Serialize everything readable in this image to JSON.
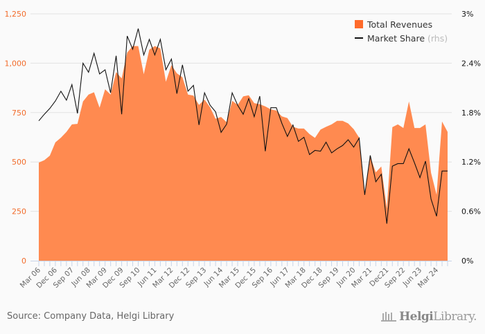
{
  "chart_data": {
    "type": "area+line",
    "title": "",
    "xlabel": "",
    "ylabel": "",
    "ylim": [
      0,
      1250
    ],
    "y_ticks": [
      "0",
      "250",
      "500",
      "750",
      "1,000",
      "1,250"
    ],
    "y2lim": [
      0,
      3
    ],
    "y2_ticks": [
      "0%",
      "0.6%",
      "1.2%",
      "1.8%",
      "2.4%",
      "3%"
    ],
    "x_tick_labels": [
      "Mar 06",
      "Dec 06",
      "Sep 07",
      "Jun 08",
      "Mar 09",
      "Dec 09",
      "Sep 10",
      "Jun 11",
      "Mar 12",
      "Dec 12",
      "Sep 13",
      "Jun 14",
      "Mar 15",
      "Dec 15",
      "Sep 16",
      "Jun 17",
      "Mar 18",
      "Dec 18",
      "Sep 19",
      "Jun 20",
      "Mar 21",
      "Dec21",
      "Sep 22",
      "Jun 23",
      "Mar 24"
    ],
    "x": [
      "Mar 06",
      "Jun 06",
      "Sep 06",
      "Dec 06",
      "Mar 07",
      "Jun 07",
      "Sep 07",
      "Dec 07",
      "Mar 08",
      "Jun 08",
      "Sep 08",
      "Dec 08",
      "Mar 09",
      "Jun 09",
      "Sep 09",
      "Dec 09",
      "Mar 10",
      "Jun 10",
      "Sep 10",
      "Dec 10",
      "Mar 11",
      "Jun 11",
      "Sep 11",
      "Dec 11",
      "Mar 12",
      "Jun 12",
      "Sep 12",
      "Dec 12",
      "Mar 13",
      "Jun 13",
      "Sep 13",
      "Dec 13",
      "Mar 14",
      "Jun 14",
      "Sep 14",
      "Dec 14",
      "Mar 15",
      "Jun 15",
      "Sep 15",
      "Dec 15",
      "Mar 16",
      "Jun 16",
      "Sep 16",
      "Dec 16",
      "Mar 17",
      "Jun 17",
      "Sep 17",
      "Dec 17",
      "Mar 18",
      "Jun 18",
      "Sep 18",
      "Dec 18",
      "Mar 19",
      "Jun 19",
      "Sep 19",
      "Dec 19",
      "Mar 20",
      "Jun 20",
      "Sep 20",
      "Dec 20",
      "Mar 21",
      "Jun 21",
      "Sep 21",
      "Dec 21",
      "Mar 22",
      "Jun 22",
      "Sep 22",
      "Dec 22",
      "Mar 23",
      "Jun 23",
      "Sep 23",
      "Dec 23",
      "Mar 24",
      "Jun 24",
      "Sep 24"
    ],
    "series": [
      {
        "name": "Total Revenues",
        "type": "area",
        "axis": "left",
        "color": "#ff8a50",
        "values": [
          497,
          509,
          532,
          599,
          623,
          652,
          690,
          693,
          806,
          841,
          853,
          775,
          868,
          841,
          955,
          923,
          1054,
          1087,
          1087,
          944,
          1069,
          1087,
          1075,
          906,
          990,
          949,
          929,
          841,
          836,
          789,
          816,
          777,
          719,
          728,
          701,
          810,
          789,
          832,
          838,
          798,
          792,
          781,
          766,
          760,
          731,
          722,
          678,
          669,
          669,
          641,
          622,
          664,
          678,
          690,
          708,
          708,
          695,
          666,
          623,
          335,
          526,
          447,
          477,
          265,
          676,
          690,
          672,
          806,
          672,
          672,
          690,
          445,
          334,
          705,
          652
        ]
      },
      {
        "name": "Market Share",
        "name_suffix": "(rhs)",
        "type": "line",
        "axis": "right",
        "color": "#111111",
        "values": [
          1.7,
          1.78,
          1.85,
          1.94,
          2.06,
          1.95,
          2.14,
          1.79,
          2.4,
          2.29,
          2.52,
          2.27,
          2.32,
          2.04,
          2.49,
          1.78,
          2.73,
          2.57,
          2.82,
          2.5,
          2.69,
          2.5,
          2.69,
          2.32,
          2.45,
          2.03,
          2.38,
          2.06,
          2.13,
          1.65,
          2.04,
          1.89,
          1.81,
          1.56,
          1.66,
          2.04,
          1.89,
          1.78,
          1.97,
          1.75,
          2.0,
          1.33,
          1.86,
          1.86,
          1.67,
          1.51,
          1.65,
          1.45,
          1.5,
          1.29,
          1.34,
          1.33,
          1.44,
          1.31,
          1.36,
          1.4,
          1.47,
          1.38,
          1.49,
          0.8,
          1.28,
          0.96,
          1.05,
          0.45,
          1.15,
          1.18,
          1.18,
          1.36,
          1.19,
          1.01,
          1.21,
          0.75,
          0.54,
          1.09,
          1.09
        ]
      }
    ],
    "grid": true,
    "legend_position": "top-right"
  },
  "legend": {
    "swatch_color": "#ff6b2b",
    "revenues_label": "Total Revenues",
    "share_label": "Market Share",
    "share_suffix": "(rhs)"
  },
  "colors": {
    "left_axis": "#f26b2a",
    "right_axis": "#111111",
    "area": "#ff8a50"
  },
  "footer": {
    "source": "Source: Company Data, Helgi Library",
    "logo_bold": "Helgi",
    "logo_rest": "Library."
  }
}
